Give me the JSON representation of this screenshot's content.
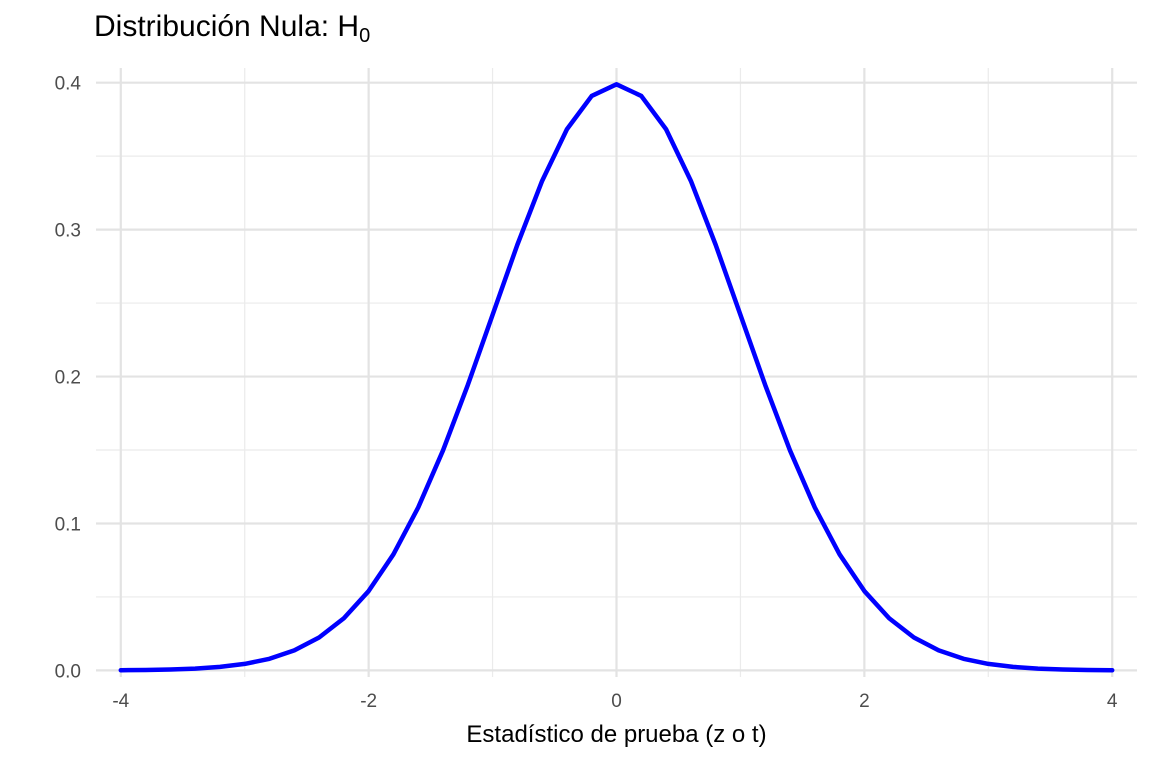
{
  "chart_data": {
    "type": "line",
    "title": "Distribución Nula: H",
    "title_subscript": "0",
    "xlabel": "Estadístico de prueba (z o t)",
    "ylabel": "",
    "xlim": [
      -4.2,
      4.2
    ],
    "ylim": [
      -0.0045,
      0.41
    ],
    "x_ticks": [
      -4,
      -2,
      0,
      2,
      4
    ],
    "x_tick_labels": [
      "-4",
      "-2",
      "0",
      "2",
      "4"
    ],
    "y_ticks": [
      0.0,
      0.1,
      0.2,
      0.3,
      0.4
    ],
    "y_tick_labels": [
      "0.0",
      "0.1",
      "0.2",
      "0.3",
      "0.4"
    ],
    "grid": true,
    "legend": "none",
    "series": [
      {
        "color": "#0000ff",
        "x": [
          -4.0,
          -3.8,
          -3.6,
          -3.4,
          -3.2,
          -3.0,
          -2.8,
          -2.6,
          -2.4,
          -2.2,
          -2.0,
          -1.8,
          -1.6,
          -1.4,
          -1.2,
          -1.0,
          -0.8,
          -0.6,
          -0.4,
          -0.2,
          0.0,
          0.2,
          0.4,
          0.6,
          0.8,
          1.0,
          1.2,
          1.4,
          1.6,
          1.8,
          2.0,
          2.2,
          2.4,
          2.6,
          2.8,
          3.0,
          3.2,
          3.4,
          3.6,
          3.8,
          4.0
        ],
        "y": [
          0.0001,
          0.0003,
          0.0006,
          0.0012,
          0.0024,
          0.0044,
          0.0079,
          0.0136,
          0.0224,
          0.0355,
          0.054,
          0.079,
          0.1109,
          0.1497,
          0.1942,
          0.242,
          0.2897,
          0.3332,
          0.3683,
          0.391,
          0.3989,
          0.391,
          0.3683,
          0.3332,
          0.2897,
          0.242,
          0.1942,
          0.1497,
          0.1109,
          0.079,
          0.054,
          0.0355,
          0.0224,
          0.0136,
          0.0079,
          0.0044,
          0.0024,
          0.0012,
          0.0006,
          0.0003,
          0.0001
        ]
      }
    ]
  }
}
